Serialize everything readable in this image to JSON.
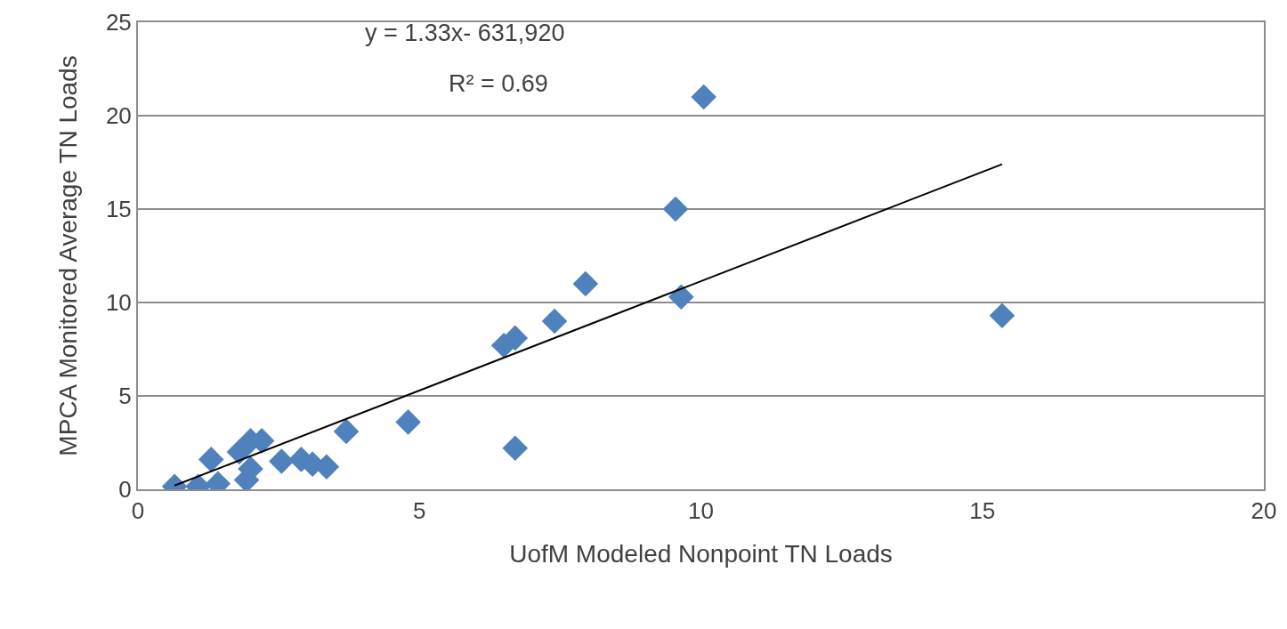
{
  "chart_data": {
    "type": "scatter",
    "xlabel": "UofM Modeled Nonpoint TN Loads",
    "ylabel": "MPCA Monitored Average TN Loads",
    "annotations": [
      "y = 1.33x- 631,920",
      "R² = 0.69"
    ],
    "xlim": [
      0,
      20
    ],
    "xticks": [
      0,
      5,
      10,
      15,
      20
    ],
    "ylim": [
      0,
      25
    ],
    "yticks": [
      0,
      5,
      10,
      15,
      20,
      25
    ],
    "grid": "y",
    "marker": "diamond",
    "series": [
      {
        "color": "#4f81bd",
        "x": [
          0.65,
          1.07,
          1.3,
          1.42,
          1.8,
          1.93,
          2.0,
          2.0,
          2.2,
          2.55,
          2.9,
          3.1,
          3.35,
          3.7,
          4.8,
          6.7,
          6.5,
          6.7,
          7.4,
          7.95,
          9.55,
          9.65,
          10.05,
          15.35
        ],
        "values": [
          0.15,
          0.15,
          1.6,
          0.3,
          2.0,
          0.5,
          1.1,
          2.6,
          2.6,
          1.5,
          1.6,
          1.35,
          1.2,
          3.1,
          3.6,
          2.2,
          7.7,
          8.1,
          9.0,
          11.0,
          15.0,
          10.3,
          21.0,
          9.3
        ]
      },
      {
        "type": "line",
        "color": "#000000",
        "x": [
          0.65,
          15.35
        ],
        "values": [
          0.2,
          17.4
        ],
        "marker": "none"
      }
    ]
  }
}
